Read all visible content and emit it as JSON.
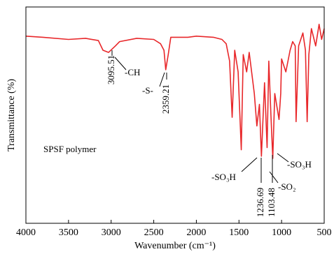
{
  "chart_data": {
    "type": "line",
    "xlabel": "Wavenumber (cm⁻¹)",
    "ylabel": "Transmittance (%)",
    "x": [
      4000,
      3800,
      3500,
      3300,
      3150,
      3095.51,
      3030,
      2950,
      2900,
      2700,
      2500,
      2420,
      2380,
      2359.21,
      2330,
      2300,
      2100,
      2000,
      1800,
      1700,
      1650,
      1610,
      1580,
      1550,
      1510,
      1473,
      1450,
      1410,
      1380,
      1320,
      1290,
      1260,
      1236.69,
      1200,
      1170,
      1150,
      1125,
      1103.48,
      1080,
      1030,
      1010,
      1000,
      950,
      900,
      870,
      840,
      830,
      800,
      750,
      720,
      700,
      680,
      650,
      600,
      560,
      530,
      500
    ],
    "series": [
      {
        "name": "SPSF polymer",
        "color": "#e8272a",
        "values": [
          86.5,
          86,
          85,
          85.5,
          84.5,
          80,
          79,
          82,
          84,
          85.5,
          85,
          83,
          80,
          71,
          78,
          86,
          86,
          86.5,
          86,
          85,
          83,
          75,
          49,
          80,
          70,
          34,
          78,
          70,
          79,
          60,
          45,
          55,
          31,
          65,
          35,
          75,
          50,
          30,
          60,
          48,
          60,
          76,
          70,
          80,
          84,
          82,
          47,
          82,
          88,
          80,
          47,
          78,
          90,
          82,
          92,
          85,
          90
        ]
      }
    ],
    "xlim": [
      4000,
      500
    ],
    "ylim": [
      0,
      100
    ],
    "xticks": [
      4000,
      3500,
      3000,
      2500,
      2000,
      1500,
      1000,
      500
    ],
    "annotations": [
      "3095.51",
      "-CH",
      "-S-",
      "2359.21",
      "SPSF polymer",
      "-SO₃H",
      "1236.69",
      "1103.48",
      "-SO₂",
      "-SO₃H"
    ]
  }
}
